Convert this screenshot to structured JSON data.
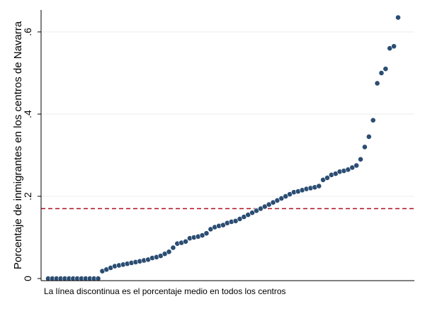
{
  "chart_data": {
    "type": "scatter",
    "ylabel": "Porcentaje de inmigrantes en los centros de Navarra",
    "xlabel": "",
    "note": "La línea discontinua es el porcentaje medio en todos los centros",
    "ylim": [
      0,
      0.6
    ],
    "xlim": [
      0,
      100
    ],
    "yticks": [
      {
        "value": 0,
        "label": "0"
      },
      {
        "value": 0.2,
        "label": ".2"
      },
      {
        "value": 0.4,
        "label": ".4"
      },
      {
        "value": 0.6,
        "label": ".6"
      }
    ],
    "grid": true,
    "reference_line": {
      "value": 0.17,
      "style": "dashed",
      "color": "#b01020"
    },
    "series": [
      {
        "color": "#2b4d73",
        "points": [
          [
            1,
            0
          ],
          [
            2,
            0
          ],
          [
            3,
            0
          ],
          [
            4,
            0
          ],
          [
            5,
            0
          ],
          [
            6,
            0
          ],
          [
            7,
            0
          ],
          [
            8,
            0
          ],
          [
            9,
            0
          ],
          [
            10,
            0
          ],
          [
            11,
            0
          ],
          [
            12,
            0
          ],
          [
            13,
            0
          ],
          [
            14,
            0.018
          ],
          [
            15,
            0.022
          ],
          [
            16,
            0.026
          ],
          [
            17,
            0.03
          ],
          [
            18,
            0.032
          ],
          [
            19,
            0.034
          ],
          [
            20,
            0.036
          ],
          [
            21,
            0.038
          ],
          [
            22,
            0.04
          ],
          [
            23,
            0.042
          ],
          [
            24,
            0.044
          ],
          [
            25,
            0.046
          ],
          [
            26,
            0.05
          ],
          [
            27,
            0.052
          ],
          [
            28,
            0.055
          ],
          [
            29,
            0.06
          ],
          [
            30,
            0.065
          ],
          [
            31,
            0.075
          ],
          [
            32,
            0.085
          ],
          [
            33,
            0.087
          ],
          [
            34,
            0.09
          ],
          [
            35,
            0.098
          ],
          [
            36,
            0.1
          ],
          [
            37,
            0.102
          ],
          [
            38,
            0.105
          ],
          [
            39,
            0.11
          ],
          [
            40,
            0.12
          ],
          [
            41,
            0.125
          ],
          [
            42,
            0.128
          ],
          [
            43,
            0.13
          ],
          [
            44,
            0.135
          ],
          [
            45,
            0.138
          ],
          [
            46,
            0.14
          ],
          [
            47,
            0.145
          ],
          [
            48,
            0.15
          ],
          [
            49,
            0.155
          ],
          [
            50,
            0.16
          ],
          [
            51,
            0.165
          ],
          [
            52,
            0.17
          ],
          [
            53,
            0.175
          ],
          [
            54,
            0.18
          ],
          [
            55,
            0.185
          ],
          [
            56,
            0.19
          ],
          [
            57,
            0.195
          ],
          [
            58,
            0.2
          ],
          [
            59,
            0.205
          ],
          [
            60,
            0.21
          ],
          [
            61,
            0.212
          ],
          [
            62,
            0.215
          ],
          [
            63,
            0.218
          ],
          [
            64,
            0.22
          ],
          [
            65,
            0.222
          ],
          [
            66,
            0.225
          ],
          [
            67,
            0.24
          ],
          [
            68,
            0.245
          ],
          [
            69,
            0.252
          ],
          [
            70,
            0.255
          ],
          [
            71,
            0.26
          ],
          [
            72,
            0.262
          ],
          [
            73,
            0.265
          ],
          [
            74,
            0.27
          ],
          [
            75,
            0.275
          ],
          [
            76,
            0.29
          ],
          [
            77,
            0.32
          ],
          [
            78,
            0.345
          ],
          [
            79,
            0.385
          ],
          [
            80,
            0.475
          ],
          [
            81,
            0.5
          ],
          [
            82,
            0.51
          ],
          [
            83,
            0.56
          ],
          [
            84,
            0.565
          ],
          [
            85,
            0.635
          ]
        ]
      }
    ]
  }
}
